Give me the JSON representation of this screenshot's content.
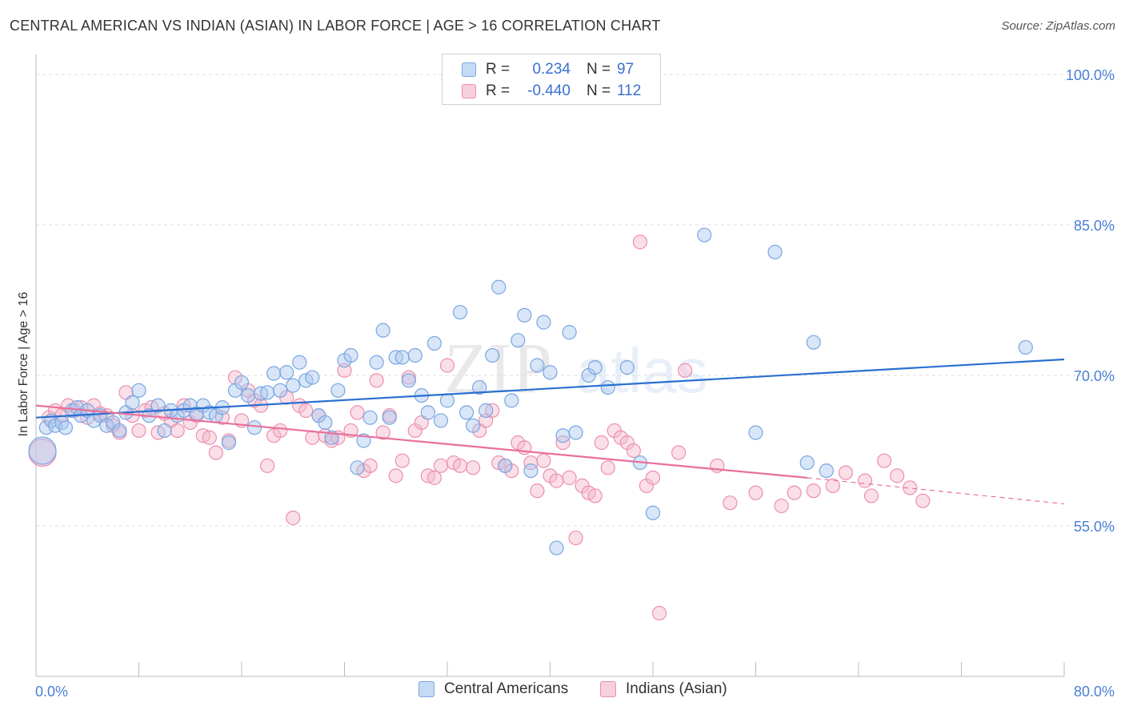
{
  "title": "CENTRAL AMERICAN VS INDIAN (ASIAN) IN LABOR FORCE | AGE > 16 CORRELATION CHART",
  "source": "Source: ZipAtlas.com",
  "colors": {
    "blue_fill": "#a9c8f0",
    "blue_stroke": "#7aa6e0",
    "blue_line": "#2a6fd0",
    "pink_fill": "#f5b8cc",
    "pink_stroke": "#ec8fae",
    "pink_line": "#e8709a",
    "tick_text": "#4a7fd4",
    "grid": "#dddddd"
  },
  "legend": {
    "rows": [
      {
        "r_label": "R =",
        "r_value": "0.234",
        "n_label": "N =",
        "n_value": "97"
      },
      {
        "r_label": "R =",
        "r_value": "-0.440",
        "n_label": "N =",
        "n_value": "112"
      }
    ]
  },
  "bottom_legend": {
    "blue": "Central Americans",
    "pink": "Indians (Asian)"
  },
  "chart_data": {
    "type": "scatter",
    "title": "CENTRAL AMERICAN VS INDIAN (ASIAN) IN LABOR FORCE | AGE > 16 CORRELATION CHART",
    "ylabel": "In Labor Force | Age > 16",
    "xlabel": "",
    "xlim": [
      0,
      80
    ],
    "ylim": [
      40,
      102
    ],
    "x_tick_labels": [
      "0.0%",
      "80.0%"
    ],
    "y_ticks": [
      55,
      70,
      85,
      100
    ],
    "y_tick_labels": [
      "55.0%",
      "70.0%",
      "85.0%",
      "100.0%"
    ],
    "grid": "horizontal dashed",
    "legend_position": "top-center",
    "series": [
      {
        "name": "Central Americans",
        "color": "#a9c8f0",
        "trend": {
          "x": [
            0,
            80
          ],
          "y": [
            65.8,
            71.6
          ]
        },
        "points": [
          [
            0.5,
            62.5
          ],
          [
            0.8,
            64.8
          ],
          [
            1.2,
            65.5
          ],
          [
            1.5,
            65.0
          ],
          [
            2.0,
            65.3
          ],
          [
            2.3,
            64.8
          ],
          [
            2.8,
            66.5
          ],
          [
            3.2,
            66.8
          ],
          [
            3.5,
            66.0
          ],
          [
            4.0,
            66.5
          ],
          [
            4.5,
            65.5
          ],
          [
            5.0,
            66.0
          ],
          [
            5.5,
            65.0
          ],
          [
            6.0,
            65.3
          ],
          [
            6.5,
            64.5
          ],
          [
            7.0,
            66.3
          ],
          [
            7.5,
            67.3
          ],
          [
            8.0,
            68.5
          ],
          [
            8.8,
            66.0
          ],
          [
            9.5,
            67.0
          ],
          [
            10.0,
            64.5
          ],
          [
            10.5,
            66.5
          ],
          [
            11.0,
            66.0
          ],
          [
            11.5,
            66.5
          ],
          [
            12.0,
            67.0
          ],
          [
            12.5,
            66.2
          ],
          [
            13.0,
            67.0
          ],
          [
            13.5,
            66.3
          ],
          [
            14.0,
            66.0
          ],
          [
            14.5,
            66.8
          ],
          [
            15.0,
            63.3
          ],
          [
            15.5,
            68.5
          ],
          [
            16.0,
            69.3
          ],
          [
            16.5,
            68.0
          ],
          [
            17.0,
            64.8
          ],
          [
            17.5,
            68.2
          ],
          [
            18.0,
            68.3
          ],
          [
            18.5,
            70.2
          ],
          [
            19.0,
            68.5
          ],
          [
            19.5,
            70.3
          ],
          [
            20.0,
            69.0
          ],
          [
            20.5,
            71.3
          ],
          [
            21.0,
            69.5
          ],
          [
            21.5,
            69.8
          ],
          [
            22.0,
            66.0
          ],
          [
            22.5,
            65.3
          ],
          [
            23.0,
            63.8
          ],
          [
            23.5,
            68.5
          ],
          [
            24.0,
            71.5
          ],
          [
            24.5,
            72.0
          ],
          [
            25.0,
            60.8
          ],
          [
            25.5,
            63.5
          ],
          [
            26.0,
            65.8
          ],
          [
            26.5,
            71.3
          ],
          [
            27.0,
            74.5
          ],
          [
            27.5,
            65.8
          ],
          [
            28.0,
            71.8
          ],
          [
            28.5,
            71.8
          ],
          [
            29.0,
            69.5
          ],
          [
            29.5,
            72.0
          ],
          [
            30.0,
            68.0
          ],
          [
            30.5,
            66.3
          ],
          [
            31.0,
            73.2
          ],
          [
            31.5,
            65.5
          ],
          [
            32.0,
            67.5
          ],
          [
            33.0,
            76.3
          ],
          [
            33.5,
            66.3
          ],
          [
            34.0,
            65.0
          ],
          [
            34.5,
            68.8
          ],
          [
            35.0,
            66.5
          ],
          [
            35.5,
            72.0
          ],
          [
            36.0,
            78.8
          ],
          [
            36.5,
            61.0
          ],
          [
            37.0,
            67.5
          ],
          [
            37.5,
            73.5
          ],
          [
            38.0,
            76.0
          ],
          [
            38.5,
            60.5
          ],
          [
            39.0,
            71.0
          ],
          [
            39.5,
            75.3
          ],
          [
            40.0,
            70.3
          ],
          [
            40.5,
            52.8
          ],
          [
            41.0,
            64.0
          ],
          [
            41.5,
            74.3
          ],
          [
            42.0,
            64.3
          ],
          [
            43.0,
            70.0
          ],
          [
            43.5,
            70.8
          ],
          [
            44.5,
            68.8
          ],
          [
            46.0,
            70.8
          ],
          [
            47.0,
            61.3
          ],
          [
            48.0,
            56.3
          ],
          [
            52.0,
            84.0
          ],
          [
            56.0,
            64.3
          ],
          [
            57.5,
            82.3
          ],
          [
            60.0,
            61.3
          ],
          [
            60.5,
            73.3
          ],
          [
            61.5,
            60.5
          ],
          [
            77.0,
            72.8
          ]
        ]
      },
      {
        "name": "Indians (Asian)",
        "color": "#f5b8cc",
        "trend": {
          "x": [
            0,
            60
          ],
          "y": [
            67.0,
            59.8
          ]
        },
        "trend_dashed": {
          "x": [
            60,
            80
          ],
          "y": [
            59.8,
            57.2
          ]
        },
        "points": [
          [
            0.5,
            62.3
          ],
          [
            1.0,
            65.8
          ],
          [
            1.5,
            66.5
          ],
          [
            2.0,
            66.0
          ],
          [
            2.5,
            67.0
          ],
          [
            3.0,
            66.5
          ],
          [
            3.5,
            66.8
          ],
          [
            4.0,
            65.8
          ],
          [
            4.5,
            67.0
          ],
          [
            5.0,
            66.2
          ],
          [
            5.5,
            66.0
          ],
          [
            6.0,
            65.0
          ],
          [
            6.5,
            64.3
          ],
          [
            7.0,
            68.3
          ],
          [
            7.5,
            66.0
          ],
          [
            8.0,
            64.5
          ],
          [
            8.5,
            66.5
          ],
          [
            9.0,
            66.8
          ],
          [
            9.5,
            64.3
          ],
          [
            10.0,
            66.2
          ],
          [
            10.5,
            65.5
          ],
          [
            11.0,
            64.5
          ],
          [
            11.5,
            67.0
          ],
          [
            12.0,
            65.3
          ],
          [
            12.5,
            66.0
          ],
          [
            13.0,
            64.0
          ],
          [
            13.5,
            63.8
          ],
          [
            14.0,
            62.3
          ],
          [
            14.5,
            65.8
          ],
          [
            15.0,
            63.5
          ],
          [
            15.5,
            69.8
          ],
          [
            16.0,
            65.5
          ],
          [
            16.5,
            68.5
          ],
          [
            17.0,
            67.5
          ],
          [
            17.5,
            67.0
          ],
          [
            18.0,
            61.0
          ],
          [
            18.5,
            64.0
          ],
          [
            19.0,
            64.5
          ],
          [
            19.5,
            67.8
          ],
          [
            20.0,
            55.8
          ],
          [
            20.5,
            67.0
          ],
          [
            21.0,
            66.5
          ],
          [
            21.5,
            63.8
          ],
          [
            22.0,
            66.0
          ],
          [
            22.5,
            64.0
          ],
          [
            23.0,
            63.5
          ],
          [
            23.5,
            63.8
          ],
          [
            24.0,
            70.5
          ],
          [
            24.5,
            64.5
          ],
          [
            25.0,
            66.3
          ],
          [
            25.5,
            60.5
          ],
          [
            26.0,
            61.0
          ],
          [
            26.5,
            69.5
          ],
          [
            27.0,
            64.3
          ],
          [
            27.5,
            66.0
          ],
          [
            28.0,
            60.0
          ],
          [
            28.5,
            61.5
          ],
          [
            29.0,
            69.8
          ],
          [
            29.5,
            64.5
          ],
          [
            30.0,
            65.3
          ],
          [
            30.5,
            60.0
          ],
          [
            31.0,
            59.8
          ],
          [
            31.5,
            61.0
          ],
          [
            32.0,
            71.0
          ],
          [
            32.5,
            61.3
          ],
          [
            33.0,
            61.0
          ],
          [
            34.0,
            60.8
          ],
          [
            34.5,
            64.5
          ],
          [
            35.0,
            65.5
          ],
          [
            35.5,
            66.5
          ],
          [
            36.0,
            61.3
          ],
          [
            36.5,
            61.0
          ],
          [
            37.0,
            60.5
          ],
          [
            37.5,
            63.3
          ],
          [
            38.0,
            62.8
          ],
          [
            38.5,
            61.3
          ],
          [
            39.0,
            58.5
          ],
          [
            39.5,
            61.5
          ],
          [
            40.0,
            60.0
          ],
          [
            40.5,
            59.5
          ],
          [
            41.0,
            63.3
          ],
          [
            41.5,
            59.8
          ],
          [
            42.0,
            53.8
          ],
          [
            42.5,
            59.0
          ],
          [
            43.0,
            58.3
          ],
          [
            43.5,
            58.0
          ],
          [
            44.0,
            63.3
          ],
          [
            44.5,
            60.8
          ],
          [
            45.0,
            64.5
          ],
          [
            45.5,
            63.8
          ],
          [
            46.0,
            63.3
          ],
          [
            46.5,
            62.5
          ],
          [
            47.0,
            83.3
          ],
          [
            47.5,
            59.0
          ],
          [
            48.0,
            59.8
          ],
          [
            48.5,
            46.3
          ],
          [
            50.0,
            62.3
          ],
          [
            50.5,
            70.5
          ],
          [
            53.0,
            61.0
          ],
          [
            54.0,
            57.3
          ],
          [
            56.0,
            58.3
          ],
          [
            58.0,
            57.0
          ],
          [
            59.0,
            58.3
          ],
          [
            60.5,
            58.5
          ],
          [
            62.0,
            59.0
          ],
          [
            63.0,
            60.3
          ],
          [
            64.5,
            59.5
          ],
          [
            65.0,
            58.0
          ],
          [
            66.0,
            61.5
          ],
          [
            67.0,
            60.0
          ],
          [
            68.0,
            58.8
          ],
          [
            69.0,
            57.5
          ]
        ]
      }
    ]
  }
}
